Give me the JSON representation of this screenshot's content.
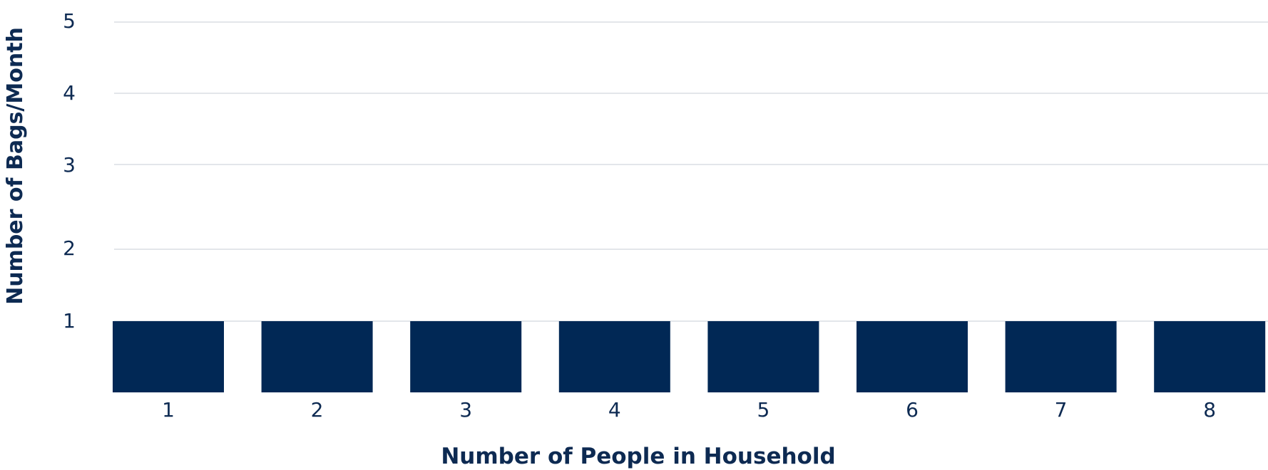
{
  "chart_data": {
    "type": "bar",
    "title": "",
    "xlabel": "Number of People in Household",
    "ylabel": "Number of Bags/Month",
    "categories": [
      "1",
      "2",
      "3",
      "4",
      "5",
      "6",
      "7",
      "8"
    ],
    "values": [
      1,
      1,
      1,
      1,
      1,
      1,
      1,
      1
    ],
    "y_ticks": [
      "1",
      "2",
      "3",
      "4",
      "5"
    ],
    "ylim": [
      0,
      5
    ],
    "grid": true,
    "legend": "none",
    "colors": {
      "bar": "#012855",
      "text": "#0d2a52",
      "grid": "#dadde3"
    }
  }
}
